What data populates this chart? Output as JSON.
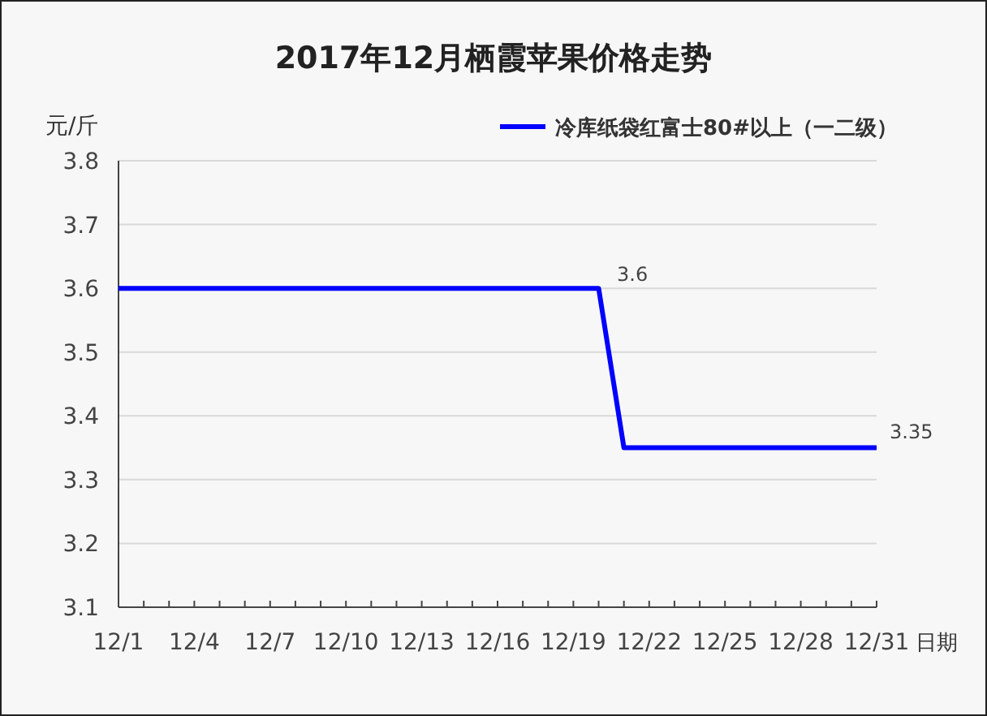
{
  "chart_data": {
    "type": "line",
    "title": "2017年12月栖霞苹果价格走势",
    "ylabel": "元/斤",
    "xlabel": "日期",
    "categories": [
      "12/1",
      null,
      null,
      "12/4",
      null,
      null,
      "12/7",
      null,
      null,
      "12/10",
      null,
      null,
      "12/13",
      null,
      null,
      "12/16",
      null,
      null,
      "12/19",
      null,
      null,
      "12/22",
      null,
      null,
      "12/25",
      null,
      null,
      "12/28",
      null,
      null,
      "12/31"
    ],
    "series": [
      {
        "name": "冷库纸袋红富士80#以上（一二级）",
        "color": "#0000ff",
        "values": [
          3.6,
          3.6,
          3.6,
          3.6,
          3.6,
          3.6,
          3.6,
          3.6,
          3.6,
          3.6,
          3.6,
          3.6,
          3.6,
          3.6,
          3.6,
          3.6,
          3.6,
          3.6,
          3.6,
          3.6,
          3.35,
          3.35,
          3.35,
          3.35,
          3.35,
          3.35,
          3.35,
          3.35,
          3.35,
          3.35,
          3.35
        ]
      }
    ],
    "ylim": [
      3.1,
      3.8
    ],
    "yticks": [
      3.1,
      3.2,
      3.3,
      3.4,
      3.5,
      3.6,
      3.7,
      3.8
    ],
    "annotations": [
      "3.6",
      {
        "text": "3.35",
        "x": "12/31",
        "y": 3.35
      }
    ],
    "grid": "y",
    "legend": "top right",
    "marker": "none",
    "line_style": "solid"
  }
}
